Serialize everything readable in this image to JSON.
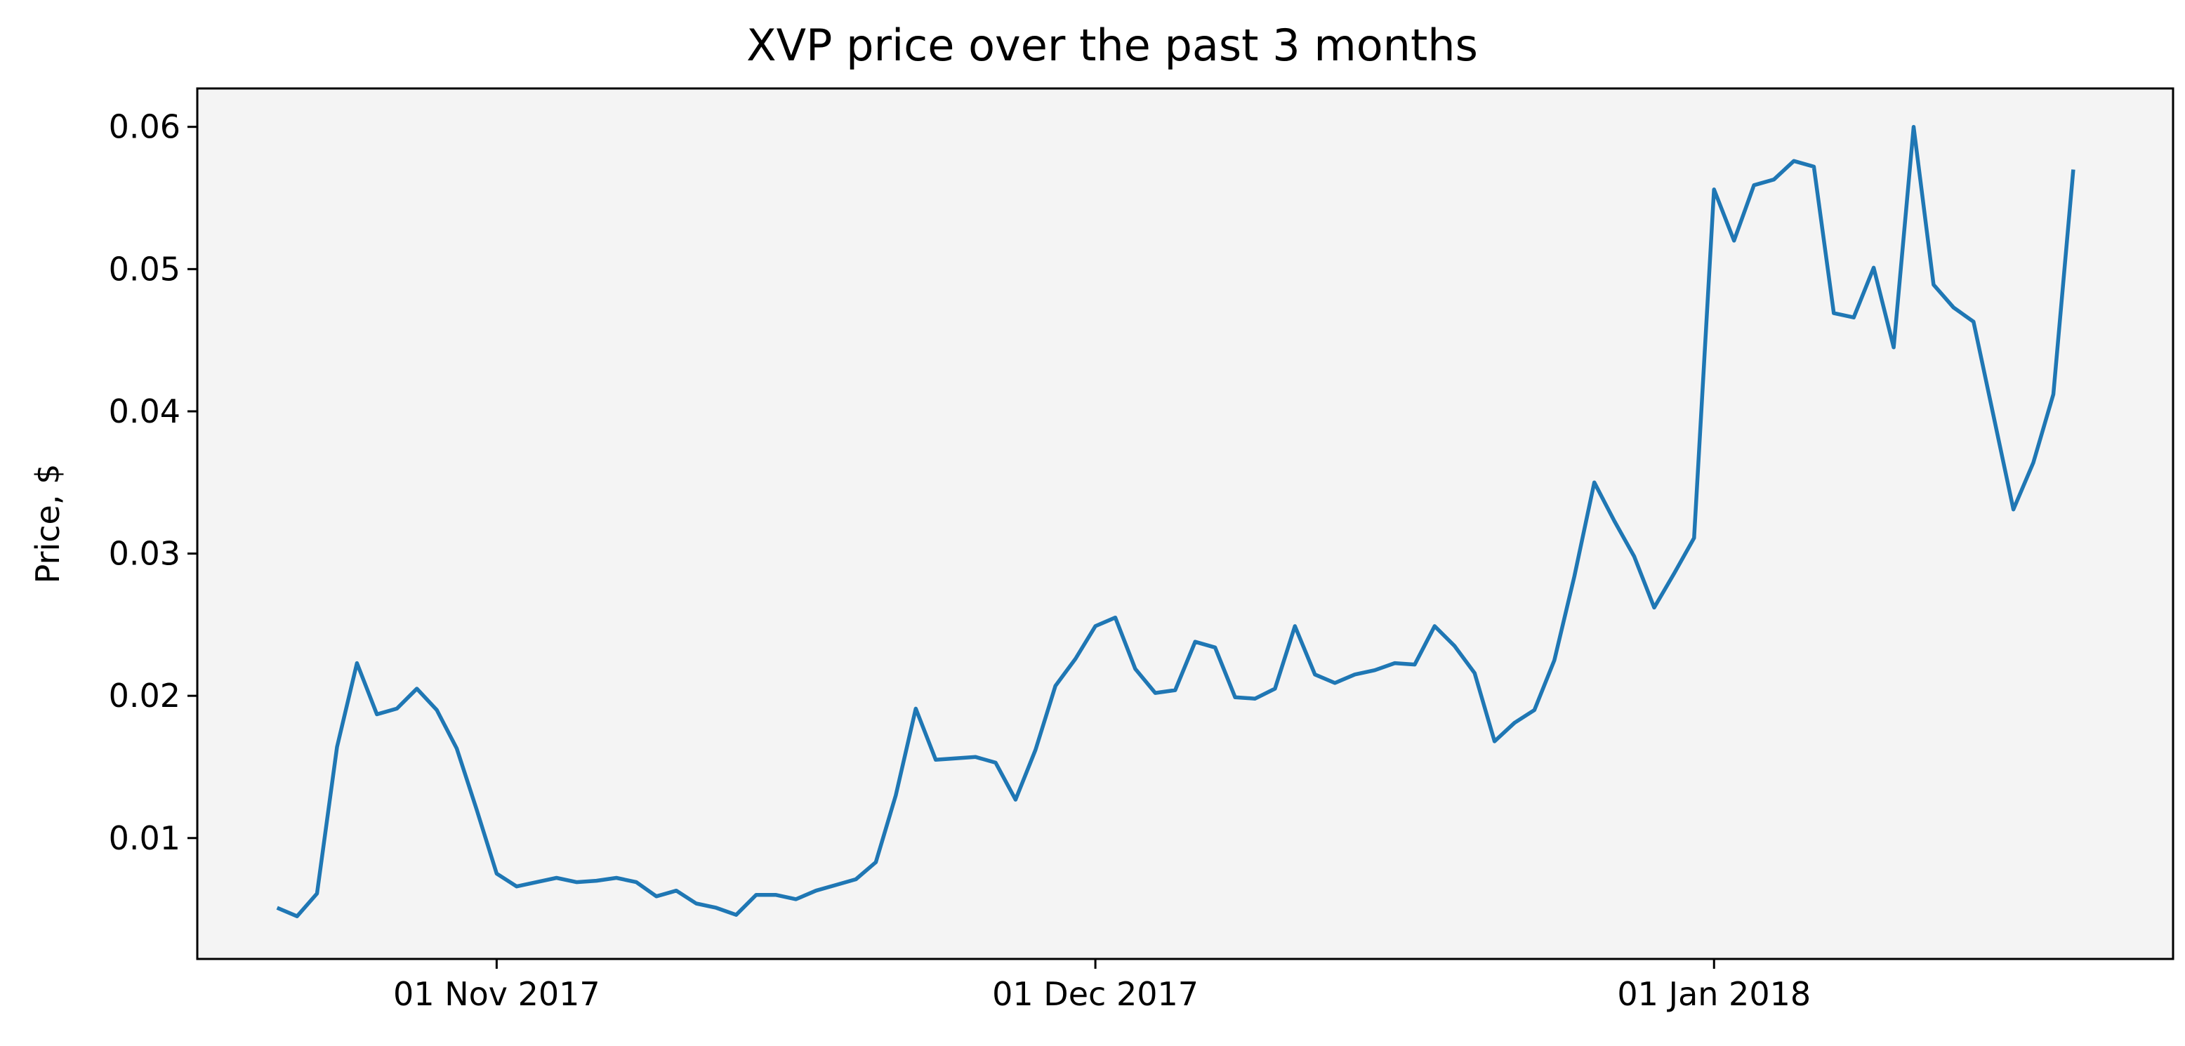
{
  "chart_data": {
    "type": "line",
    "title": "XVP price over the past 3 months",
    "xlabel": "",
    "ylabel": "Price, $",
    "ylim": [
      0.0015,
      0.0627
    ],
    "xlim": [
      "2017-10-17",
      "2018-01-24"
    ],
    "grid": false,
    "axes_background": "#f4f4f4",
    "x_ticks": [
      {
        "date": "2017-11-01",
        "label": "01 Nov 2017"
      },
      {
        "date": "2017-12-01",
        "label": "01 Dec 2017"
      },
      {
        "date": "2018-01-01",
        "label": "01 Jan 2018"
      }
    ],
    "y_ticks": [
      {
        "value": 0.01,
        "label": "0.01"
      },
      {
        "value": 0.02,
        "label": "0.02"
      },
      {
        "value": 0.03,
        "label": "0.03"
      },
      {
        "value": 0.04,
        "label": "0.04"
      },
      {
        "value": 0.05,
        "label": "0.05"
      },
      {
        "value": 0.06,
        "label": "0.06"
      }
    ],
    "series": [
      {
        "color": "#1f77b4",
        "points": [
          [
            "2017-10-21",
            0.0051
          ],
          [
            "2017-10-22",
            0.0045
          ],
          [
            "2017-10-23",
            0.0061
          ],
          [
            "2017-10-24",
            0.0164
          ],
          [
            "2017-10-25",
            0.0223
          ],
          [
            "2017-10-26",
            0.0187
          ],
          [
            "2017-10-27",
            0.0191
          ],
          [
            "2017-10-28",
            0.0205
          ],
          [
            "2017-10-29",
            0.019
          ],
          [
            "2017-10-30",
            0.0163
          ],
          [
            "2017-10-31",
            0.012
          ],
          [
            "2017-11-01",
            0.0075
          ],
          [
            "2017-11-02",
            0.0066
          ],
          [
            "2017-11-03",
            0.0069
          ],
          [
            "2017-11-04",
            0.0072
          ],
          [
            "2017-11-05",
            0.0069
          ],
          [
            "2017-11-06",
            0.007
          ],
          [
            "2017-11-07",
            0.0072
          ],
          [
            "2017-11-08",
            0.0069
          ],
          [
            "2017-11-09",
            0.0059
          ],
          [
            "2017-11-10",
            0.0063
          ],
          [
            "2017-11-11",
            0.0054
          ],
          [
            "2017-11-12",
            0.0051
          ],
          [
            "2017-11-13",
            0.0046
          ],
          [
            "2017-11-14",
            0.006
          ],
          [
            "2017-11-15",
            0.006
          ],
          [
            "2017-11-16",
            0.0057
          ],
          [
            "2017-11-17",
            0.0063
          ],
          [
            "2017-11-18",
            0.0067
          ],
          [
            "2017-11-19",
            0.0071
          ],
          [
            "2017-11-20",
            0.0083
          ],
          [
            "2017-11-21",
            0.013
          ],
          [
            "2017-11-22",
            0.0191
          ],
          [
            "2017-11-23",
            0.0155
          ],
          [
            "2017-11-24",
            0.0156
          ],
          [
            "2017-11-25",
            0.0157
          ],
          [
            "2017-11-26",
            0.0153
          ],
          [
            "2017-11-27",
            0.0127
          ],
          [
            "2017-11-28",
            0.0162
          ],
          [
            "2017-11-29",
            0.0207
          ],
          [
            "2017-11-30",
            0.0226
          ],
          [
            "2017-12-01",
            0.0249
          ],
          [
            "2017-12-02",
            0.0255
          ],
          [
            "2017-12-03",
            0.0219
          ],
          [
            "2017-12-04",
            0.0202
          ],
          [
            "2017-12-05",
            0.0204
          ],
          [
            "2017-12-06",
            0.0238
          ],
          [
            "2017-12-07",
            0.0234
          ],
          [
            "2017-12-08",
            0.0199
          ],
          [
            "2017-12-09",
            0.0198
          ],
          [
            "2017-12-10",
            0.0205
          ],
          [
            "2017-12-11",
            0.0249
          ],
          [
            "2017-12-12",
            0.0215
          ],
          [
            "2017-12-13",
            0.0209
          ],
          [
            "2017-12-14",
            0.0215
          ],
          [
            "2017-12-15",
            0.0218
          ],
          [
            "2017-12-16",
            0.0223
          ],
          [
            "2017-12-17",
            0.0222
          ],
          [
            "2017-12-18",
            0.0249
          ],
          [
            "2017-12-19",
            0.0235
          ],
          [
            "2017-12-20",
            0.0216
          ],
          [
            "2017-12-21",
            0.0168
          ],
          [
            "2017-12-22",
            0.0181
          ],
          [
            "2017-12-23",
            0.019
          ],
          [
            "2017-12-24",
            0.0225
          ],
          [
            "2017-12-25",
            0.0284
          ],
          [
            "2017-12-26",
            0.035
          ],
          [
            "2017-12-27",
            0.0323
          ],
          [
            "2017-12-28",
            0.0298
          ],
          [
            "2017-12-29",
            0.0262
          ],
          [
            "2017-12-30",
            0.0286
          ],
          [
            "2017-12-31",
            0.0311
          ],
          [
            "2018-01-01",
            0.0556
          ],
          [
            "2018-01-02",
            0.052
          ],
          [
            "2018-01-03",
            0.0559
          ],
          [
            "2018-01-04",
            0.0563
          ],
          [
            "2018-01-05",
            0.0576
          ],
          [
            "2018-01-06",
            0.0572
          ],
          [
            "2018-01-07",
            0.0469
          ],
          [
            "2018-01-08",
            0.0466
          ],
          [
            "2018-01-09",
            0.0501
          ],
          [
            "2018-01-10",
            0.0445
          ],
          [
            "2018-01-11",
            0.06
          ],
          [
            "2018-01-12",
            0.0489
          ],
          [
            "2018-01-13",
            0.0473
          ],
          [
            "2018-01-14",
            0.0463
          ],
          [
            "2018-01-15",
            0.0397
          ],
          [
            "2018-01-16",
            0.0331
          ],
          [
            "2018-01-17",
            0.0364
          ],
          [
            "2018-01-18",
            0.0412
          ],
          [
            "2018-01-19",
            0.057
          ]
        ]
      }
    ]
  }
}
